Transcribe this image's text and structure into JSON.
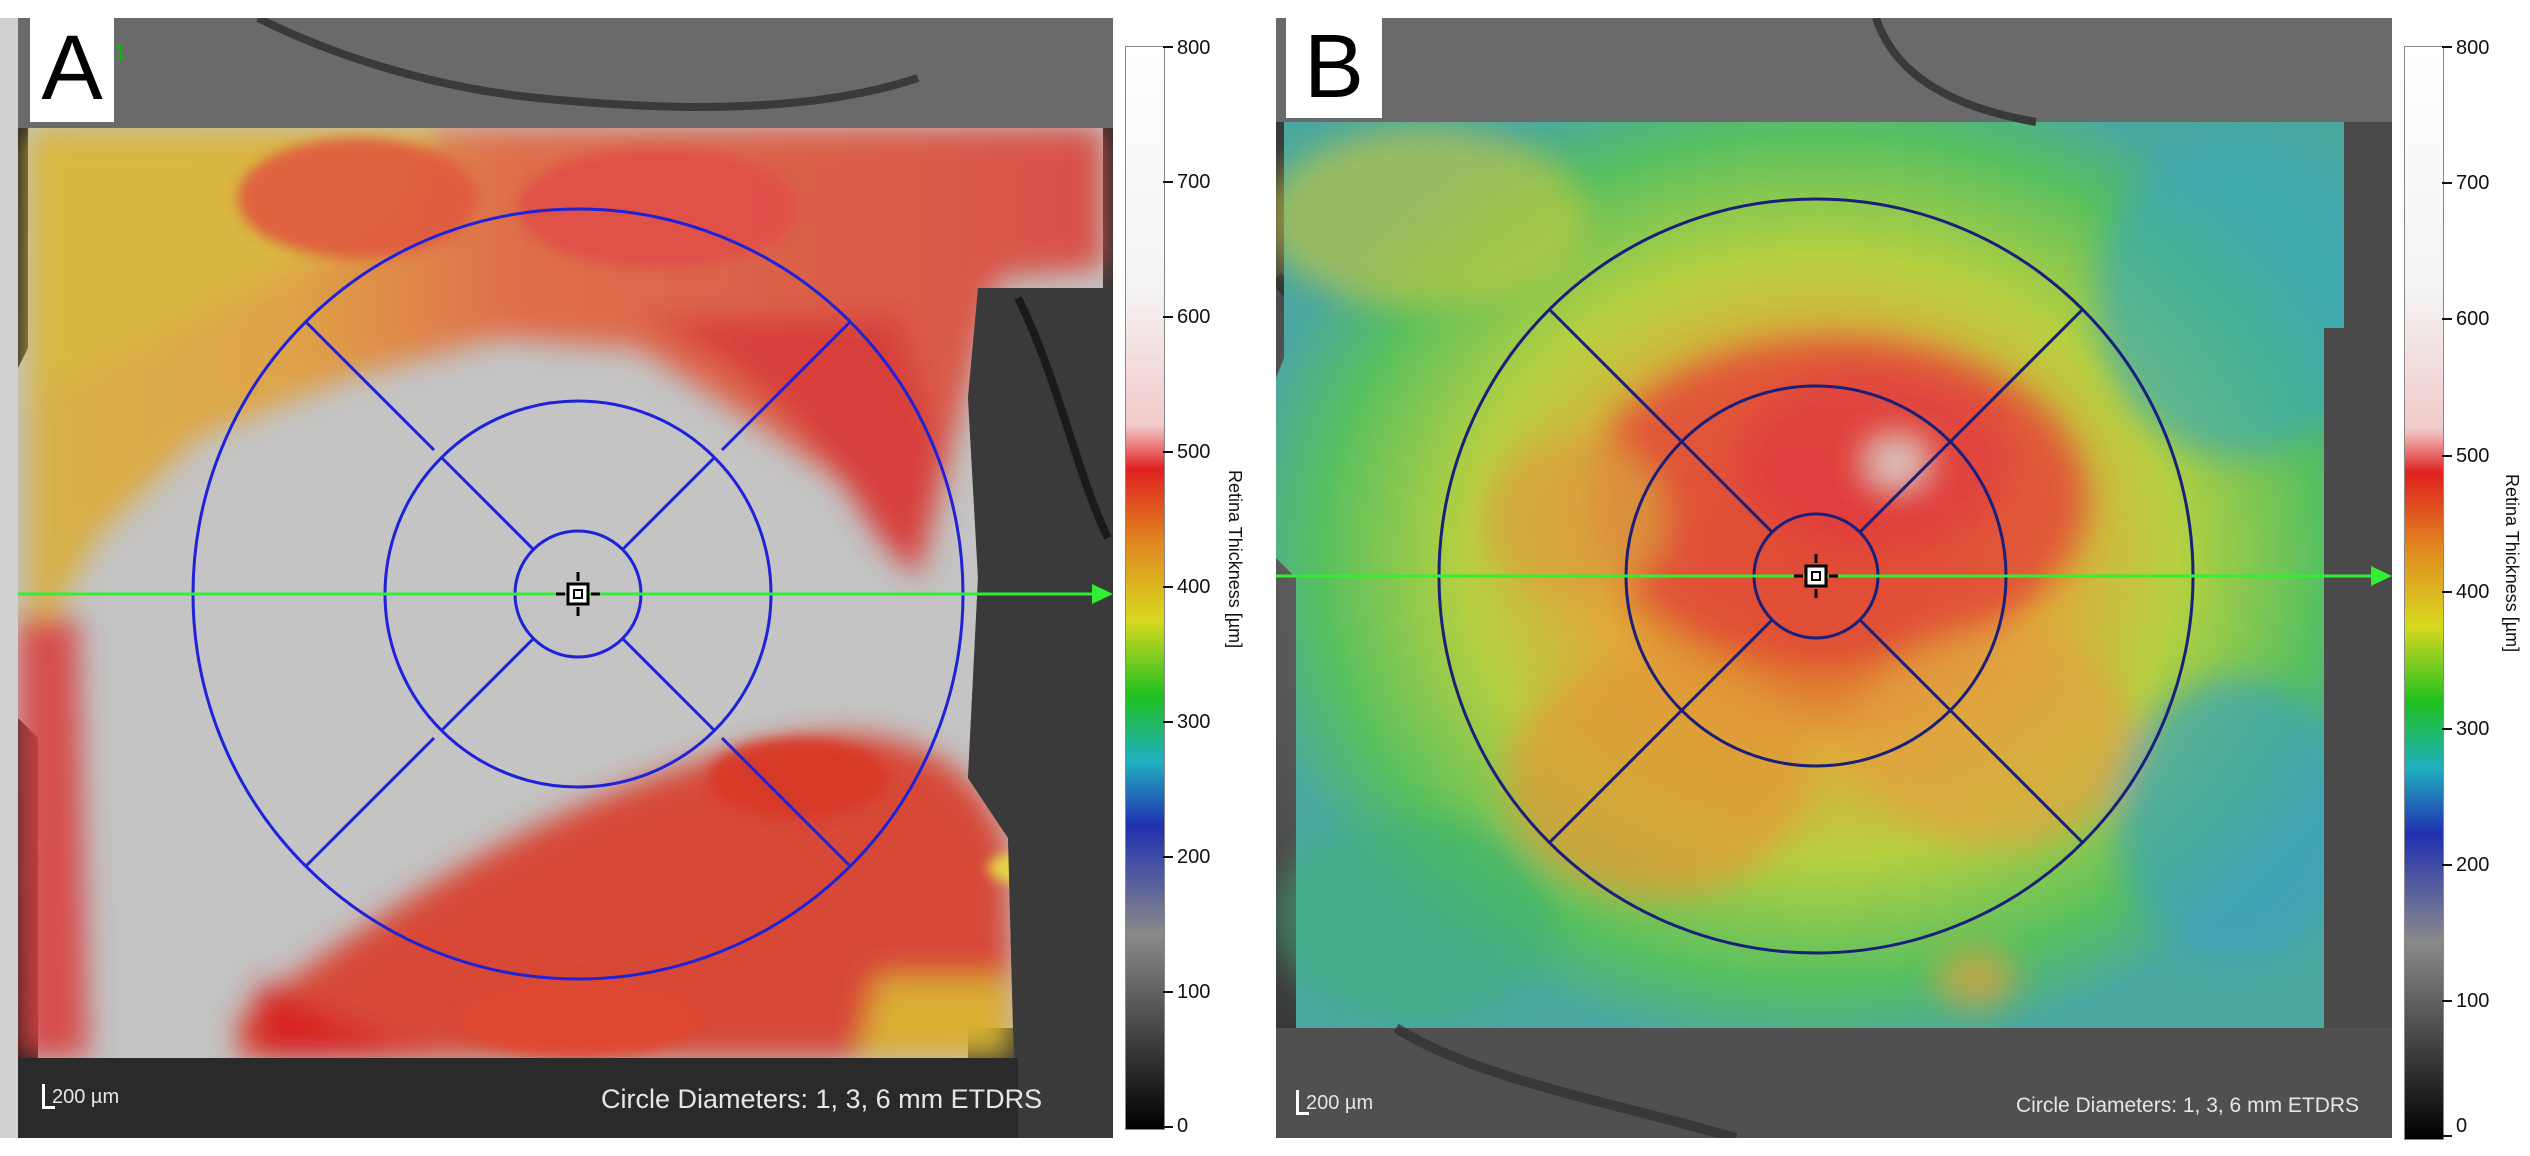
{
  "panels": [
    {
      "letter": "A",
      "marker": "1",
      "scale_bar_label": "200 µm",
      "circle_caption": "Circle Diameters: 1, 3, 6 mm ETDRS",
      "colorbar": {
        "title": "Retina Thickness [µm]",
        "ticks": [
          "800",
          "700",
          "600",
          "500",
          "400",
          "300",
          "200",
          "100",
          "0"
        ]
      }
    },
    {
      "letter": "B",
      "scale_bar_label": "200 µm",
      "circle_caption": "Circle Diameters: 1, 3, 6 mm ETDRS",
      "colorbar": {
        "title": "Retina Thickness [µm]",
        "ticks": [
          "800",
          "700",
          "600",
          "500",
          "400",
          "300",
          "200",
          "100",
          "0"
        ]
      }
    }
  ],
  "colors": {
    "etdrs_grid_a": "#1e22d8",
    "etdrs_grid_b": "#1a1f7a",
    "scan_arrow": "#33ee33",
    "colorbar_stops": [
      "#ffffff",
      "#f2c8c8",
      "#e02020",
      "#e8a020",
      "#d8d820",
      "#20c020",
      "#20b0c0",
      "#2030b0",
      "#8a8a8a",
      "#000000"
    ]
  },
  "icons": [
    "fovea-center-marker-icon",
    "scan-direction-arrow-icon",
    "scale-corner-icon"
  ]
}
